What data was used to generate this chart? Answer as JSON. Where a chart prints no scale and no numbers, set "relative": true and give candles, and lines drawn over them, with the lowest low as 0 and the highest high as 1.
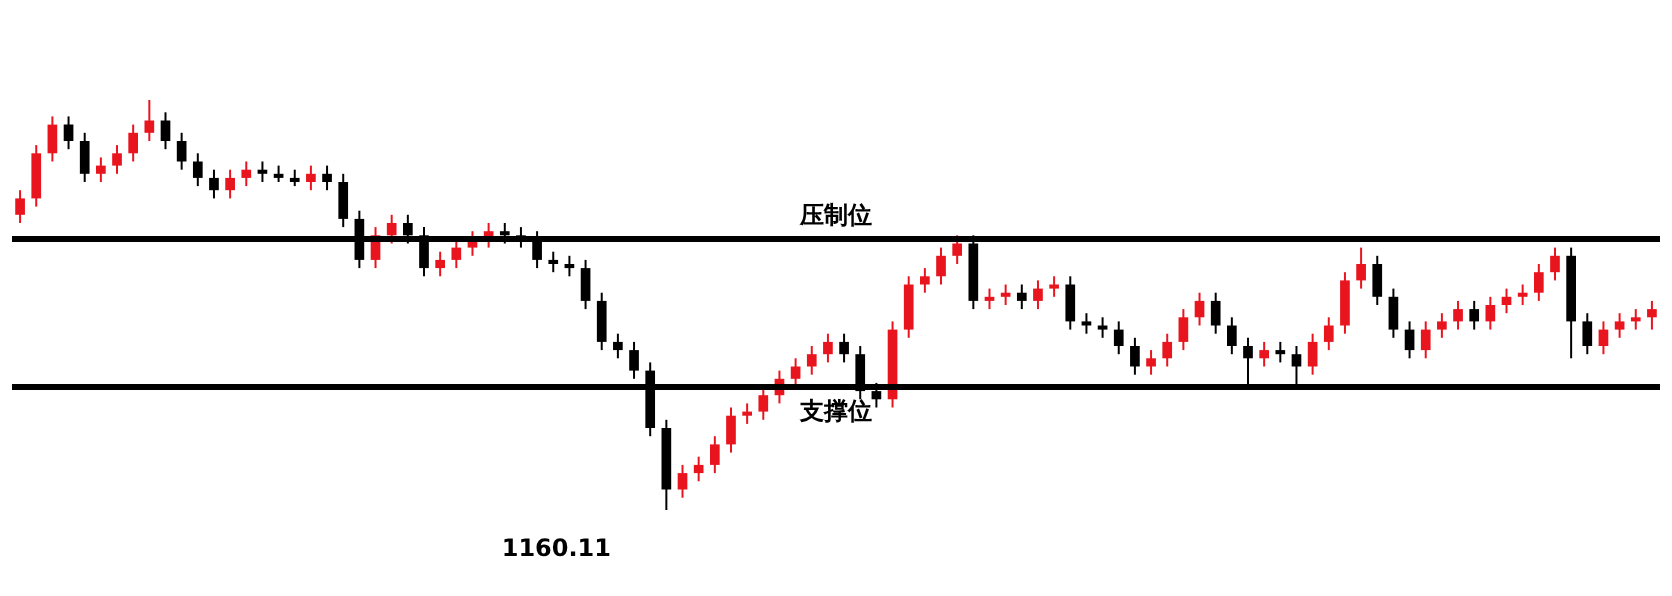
{
  "chart_data": {
    "type": "candlestick",
    "relative": true,
    "colors": [
      "#e8141e",
      "#e8141e",
      "#e8141e",
      "#000000",
      "#000000",
      "#e8141e",
      "#e8141e",
      "#e8141e",
      "#e8141e",
      "#000000",
      "#000000",
      "#000000",
      "#000000",
      "#e8141e",
      "#e8141e",
      "#000000",
      "#000000",
      "#000000",
      "#e8141e",
      "#000000",
      "#000000",
      "#000000",
      "#e8141e",
      "#e8141e",
      "#000000",
      "#000000",
      "#e8141e",
      "#e8141e",
      "#e8141e",
      "#e8141e",
      "#000000",
      "#000000",
      "#000000",
      "#000000",
      "#000000",
      "#000000",
      "#000000",
      "#000000",
      "#000000",
      "#000000",
      "#000000",
      "#e8141e",
      "#e8141e",
      "#e8141e",
      "#e8141e",
      "#e8141e",
      "#e8141e",
      "#e8141e",
      "#e8141e",
      "#e8141e",
      "#e8141e",
      "#000000",
      "#000000",
      "#000000",
      "#e8141e",
      "#e8141e",
      "#e8141e",
      "#e8141e",
      "#e8141e",
      "#000000",
      "#e8141e",
      "#e8141e",
      "#000000",
      "#e8141e",
      "#e8141e",
      "#000000",
      "#000000",
      "#000000",
      "#000000",
      "#000000",
      "#e8141e",
      "#e8141e",
      "#e8141e",
      "#e8141e",
      "#000000",
      "#000000",
      "#000000",
      "#e8141e",
      "#000000",
      "#000000",
      "#e8141e",
      "#e8141e",
      "#e8141e",
      "#e8141e",
      "#000000",
      "#000000",
      "#000000",
      "#e8141e",
      "#e8141e",
      "#e8141e",
      "#000000",
      "#e8141e",
      "#e8141e",
      "#e8141e",
      "#e8141e",
      "#e8141e",
      "#000000",
      "#000000",
      "#e8141e",
      "#e8141e",
      "#e8141e",
      "#e8141e"
    ],
    "categories": [
      null,
      null,
      null,
      null,
      null,
      null,
      null,
      null,
      null,
      null,
      null,
      null,
      null,
      null,
      null,
      null,
      null,
      null,
      null,
      null,
      null,
      null,
      null,
      null,
      null,
      null,
      null,
      null,
      null,
      null,
      null,
      null,
      null,
      null,
      null,
      null,
      null,
      null,
      null,
      null,
      null,
      null,
      null,
      null,
      null,
      null,
      null,
      null,
      null,
      null,
      null,
      null,
      null,
      null,
      null,
      null,
      null,
      null,
      null,
      null,
      null,
      null,
      null,
      null,
      null,
      null,
      null,
      null,
      null,
      null,
      null,
      null,
      null,
      null,
      null,
      null,
      null,
      null,
      null,
      null,
      null,
      null,
      null,
      null,
      null,
      null,
      null,
      null,
      null,
      null,
      null,
      null,
      null,
      null,
      null,
      null,
      null,
      null,
      null,
      null,
      null,
      null
    ],
    "ohlc": [
      [
        0.72,
        0.78,
        0.7,
        0.76
      ],
      [
        0.76,
        0.89,
        0.74,
        0.87
      ],
      [
        0.87,
        0.96,
        0.85,
        0.94
      ],
      [
        0.94,
        0.96,
        0.88,
        0.9
      ],
      [
        0.9,
        0.92,
        0.8,
        0.82
      ],
      [
        0.82,
        0.86,
        0.8,
        0.84
      ],
      [
        0.84,
        0.89,
        0.82,
        0.87
      ],
      [
        0.87,
        0.94,
        0.85,
        0.92
      ],
      [
        0.92,
        1.0,
        0.9,
        0.95
      ],
      [
        0.95,
        0.97,
        0.88,
        0.9
      ],
      [
        0.9,
        0.92,
        0.83,
        0.85
      ],
      [
        0.85,
        0.87,
        0.79,
        0.81
      ],
      [
        0.81,
        0.83,
        0.76,
        0.78
      ],
      [
        0.78,
        0.83,
        0.76,
        0.81
      ],
      [
        0.81,
        0.85,
        0.79,
        0.83
      ],
      [
        0.83,
        0.85,
        0.8,
        0.82
      ],
      [
        0.82,
        0.84,
        0.8,
        0.81
      ],
      [
        0.81,
        0.83,
        0.79,
        0.8
      ],
      [
        0.8,
        0.84,
        0.78,
        0.82
      ],
      [
        0.82,
        0.84,
        0.78,
        0.8
      ],
      [
        0.8,
        0.82,
        0.69,
        0.71
      ],
      [
        0.71,
        0.73,
        0.59,
        0.61
      ],
      [
        0.61,
        0.69,
        0.59,
        0.67
      ],
      [
        0.67,
        0.72,
        0.65,
        0.7
      ],
      [
        0.7,
        0.72,
        0.65,
        0.67
      ],
      [
        0.67,
        0.69,
        0.57,
        0.59
      ],
      [
        0.59,
        0.63,
        0.57,
        0.61
      ],
      [
        0.61,
        0.66,
        0.59,
        0.64
      ],
      [
        0.64,
        0.68,
        0.62,
        0.66
      ],
      [
        0.66,
        0.7,
        0.64,
        0.68
      ],
      [
        0.68,
        0.7,
        0.65,
        0.67
      ],
      [
        0.67,
        0.69,
        0.64,
        0.66
      ],
      [
        0.66,
        0.68,
        0.59,
        0.61
      ],
      [
        0.61,
        0.63,
        0.58,
        0.6
      ],
      [
        0.6,
        0.62,
        0.57,
        0.59
      ],
      [
        0.59,
        0.61,
        0.49,
        0.51
      ],
      [
        0.51,
        0.53,
        0.39,
        0.41
      ],
      [
        0.41,
        0.43,
        0.37,
        0.39
      ],
      [
        0.39,
        0.41,
        0.32,
        0.34
      ],
      [
        0.34,
        0.36,
        0.18,
        0.2
      ],
      [
        0.2,
        0.22,
        0.0,
        0.05
      ],
      [
        0.05,
        0.11,
        0.03,
        0.09
      ],
      [
        0.09,
        0.13,
        0.07,
        0.11
      ],
      [
        0.11,
        0.18,
        0.09,
        0.16
      ],
      [
        0.16,
        0.25,
        0.14,
        0.23
      ],
      [
        0.23,
        0.26,
        0.21,
        0.24
      ],
      [
        0.24,
        0.3,
        0.22,
        0.28
      ],
      [
        0.28,
        0.34,
        0.26,
        0.32
      ],
      [
        0.32,
        0.37,
        0.3,
        0.35
      ],
      [
        0.35,
        0.4,
        0.33,
        0.38
      ],
      [
        0.38,
        0.43,
        0.36,
        0.41
      ],
      [
        0.41,
        0.43,
        0.36,
        0.38
      ],
      [
        0.38,
        0.4,
        0.27,
        0.29
      ],
      [
        0.29,
        0.31,
        0.25,
        0.27
      ],
      [
        0.27,
        0.46,
        0.25,
        0.44
      ],
      [
        0.44,
        0.57,
        0.42,
        0.55
      ],
      [
        0.55,
        0.59,
        0.53,
        0.57
      ],
      [
        0.57,
        0.64,
        0.55,
        0.62
      ],
      [
        0.62,
        0.67,
        0.6,
        0.65
      ],
      [
        0.65,
        0.67,
        0.49,
        0.51
      ],
      [
        0.51,
        0.54,
        0.49,
        0.52
      ],
      [
        0.52,
        0.55,
        0.5,
        0.53
      ],
      [
        0.53,
        0.55,
        0.49,
        0.51
      ],
      [
        0.51,
        0.56,
        0.49,
        0.54
      ],
      [
        0.54,
        0.57,
        0.52,
        0.55
      ],
      [
        0.55,
        0.57,
        0.44,
        0.46
      ],
      [
        0.46,
        0.48,
        0.43,
        0.45
      ],
      [
        0.45,
        0.47,
        0.42,
        0.44
      ],
      [
        0.44,
        0.46,
        0.38,
        0.4
      ],
      [
        0.4,
        0.42,
        0.33,
        0.35
      ],
      [
        0.35,
        0.39,
        0.33,
        0.37
      ],
      [
        0.37,
        0.43,
        0.35,
        0.41
      ],
      [
        0.41,
        0.49,
        0.39,
        0.47
      ],
      [
        0.47,
        0.53,
        0.45,
        0.51
      ],
      [
        0.51,
        0.53,
        0.43,
        0.45
      ],
      [
        0.45,
        0.47,
        0.38,
        0.4
      ],
      [
        0.4,
        0.42,
        0.3,
        0.37
      ],
      [
        0.37,
        0.41,
        0.35,
        0.39
      ],
      [
        0.39,
        0.41,
        0.36,
        0.38
      ],
      [
        0.38,
        0.4,
        0.3,
        0.35
      ],
      [
        0.35,
        0.43,
        0.33,
        0.41
      ],
      [
        0.41,
        0.47,
        0.39,
        0.45
      ],
      [
        0.45,
        0.58,
        0.43,
        0.56
      ],
      [
        0.56,
        0.64,
        0.54,
        0.6
      ],
      [
        0.6,
        0.62,
        0.5,
        0.52
      ],
      [
        0.52,
        0.54,
        0.42,
        0.44
      ],
      [
        0.44,
        0.46,
        0.37,
        0.39
      ],
      [
        0.39,
        0.46,
        0.37,
        0.44
      ],
      [
        0.44,
        0.48,
        0.42,
        0.46
      ],
      [
        0.46,
        0.51,
        0.44,
        0.49
      ],
      [
        0.49,
        0.51,
        0.44,
        0.46
      ],
      [
        0.46,
        0.52,
        0.44,
        0.5
      ],
      [
        0.5,
        0.54,
        0.48,
        0.52
      ],
      [
        0.52,
        0.55,
        0.5,
        0.53
      ],
      [
        0.53,
        0.6,
        0.51,
        0.58
      ],
      [
        0.58,
        0.64,
        0.56,
        0.62
      ],
      [
        0.62,
        0.64,
        0.37,
        0.46
      ],
      [
        0.46,
        0.48,
        0.38,
        0.4
      ],
      [
        0.4,
        0.46,
        0.38,
        0.44
      ],
      [
        0.44,
        0.48,
        0.42,
        0.46
      ],
      [
        0.46,
        0.49,
        0.44,
        0.47
      ],
      [
        0.47,
        0.51,
        0.44,
        0.49
      ]
    ],
    "ref_lines": [
      {
        "axis": "y",
        "value": 0.66,
        "label": "压制位",
        "color": "#000000",
        "line_style": "solid"
      },
      {
        "axis": "y",
        "value": 0.3,
        "label": "支撑位",
        "color": "#000000",
        "line_style": "solid"
      }
    ],
    "annotations": [
      "1160.11"
    ]
  }
}
